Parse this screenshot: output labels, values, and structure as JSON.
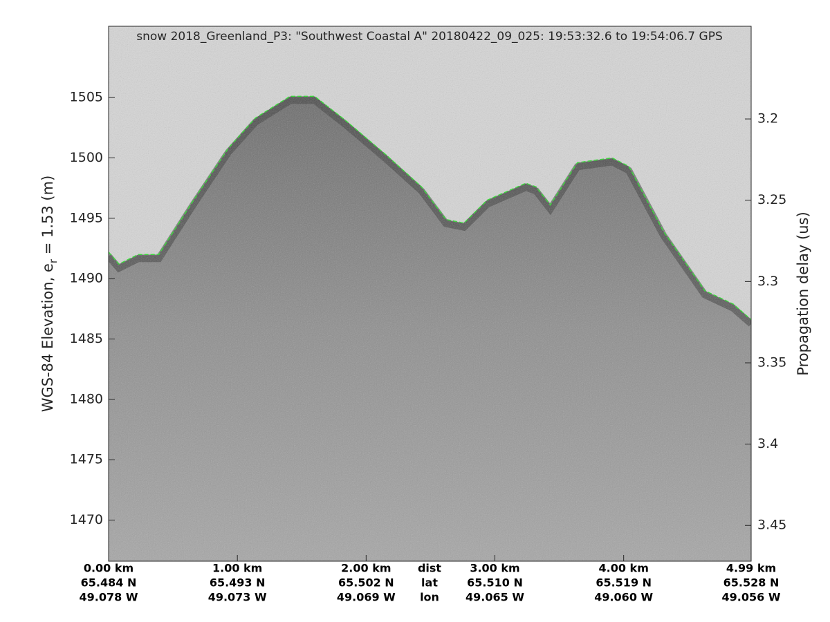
{
  "chart_data": {
    "type": "echogram",
    "title": "snow 2018_Greenland_P3: \"Southwest Coastal A\"  20180422_09_025: 19:53:32.6 to 19:54:06.7 GPS",
    "y_label": "WGS-84 Elevation, e",
    "y_label_sub": "r",
    "y_label_rest": " = 1.53 (m)",
    "y2_label": "Propagation delay (us)",
    "xlim": [
      0,
      4.99
    ],
    "xticks": [
      {
        "value": 0,
        "label": "0.00 km"
      },
      {
        "value": 1,
        "label": "1.00 km"
      },
      {
        "value": 2,
        "label": "2.00 km"
      },
      {
        "value": 3,
        "label": "3.00 km"
      },
      {
        "value": 4,
        "label": "4.00 km"
      },
      {
        "value": 4.99,
        "label": "4.99 km"
      }
    ],
    "xtick_lat": [
      "65.484 N",
      "65.493 N",
      "65.502 N",
      "65.510 N",
      "65.519 N",
      "65.528 N"
    ],
    "xtick_lon": [
      "49.078 W",
      "49.073 W",
      "49.069 W",
      "49.065 W",
      "49.060 W",
      "49.056 W"
    ],
    "xtick_row_names": [
      "dist",
      "lat",
      "lon"
    ],
    "ylim": [
      1466.6,
      1510.9
    ],
    "yticks": [
      1470,
      1475,
      1480,
      1485,
      1490,
      1495,
      1500,
      1505
    ],
    "y2lim": [
      3.472,
      3.143
    ],
    "y2ticks": [
      3.2,
      3.25,
      3.3,
      3.35,
      3.4,
      3.45
    ],
    "series": [
      {
        "name": "surface",
        "color": "#22dd22",
        "x": [
          0,
          0.08,
          0.23,
          0.39,
          0.66,
          0.93,
          1.14,
          1.41,
          1.6,
          1.84,
          2.16,
          2.43,
          2.62,
          2.76,
          2.94,
          3.24,
          3.32,
          3.43,
          3.64,
          3.91,
          4.04,
          4.31,
          4.63,
          4.85,
          4.99
        ],
        "values": [
          1492.2,
          1491.2,
          1492.0,
          1492.0,
          1496.5,
          1500.8,
          1503.3,
          1505.1,
          1505.1,
          1503.1,
          1500.2,
          1497.6,
          1494.9,
          1494.6,
          1496.5,
          1497.9,
          1497.6,
          1496.1,
          1499.6,
          1500.0,
          1499.3,
          1493.9,
          1489.0,
          1487.9,
          1486.6
        ]
      }
    ]
  }
}
